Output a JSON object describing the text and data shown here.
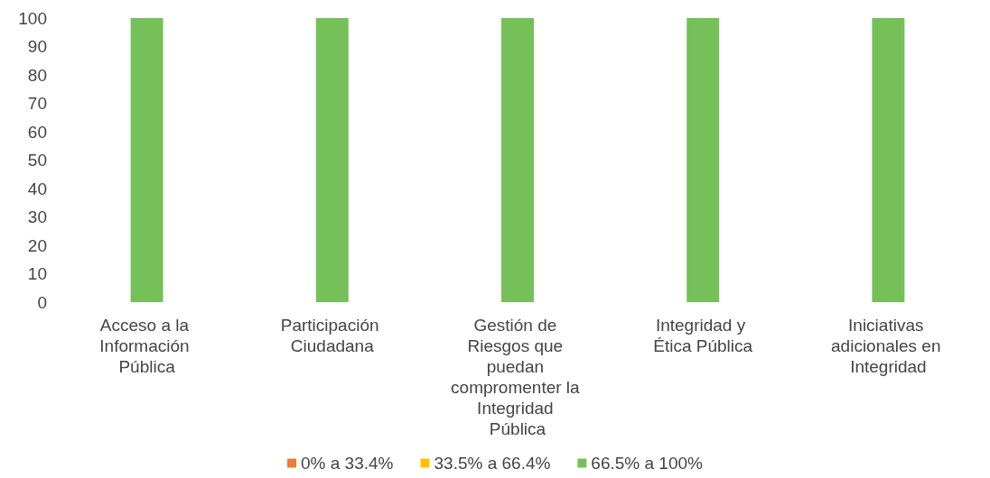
{
  "chart_data": {
    "type": "bar",
    "stacked": true,
    "categories": [
      "Acceso a la Información Pública",
      "Participación Ciudadana",
      "Gestión de Riesgos que puedan compromenter la Integridad Pública",
      "Integridad y Ética Pública",
      "Iniciativas adicionales en Integridad"
    ],
    "series": [
      {
        "name": "0% a 33.4%",
        "color": "#ed7d31",
        "values": [
          0,
          0,
          0,
          0,
          0
        ]
      },
      {
        "name": "33.5% a 66.4%",
        "color": "#ffc000",
        "values": [
          0,
          0,
          0,
          0,
          0
        ]
      },
      {
        "name": "66.5% a 100%",
        "color": "#76c05a",
        "values": [
          100,
          100,
          100,
          100,
          100
        ]
      }
    ],
    "ylim": [
      0,
      100
    ],
    "yticks": [
      0,
      10,
      20,
      30,
      40,
      50,
      60,
      70,
      80,
      90,
      100
    ],
    "grid": false,
    "legend": "bottom"
  }
}
